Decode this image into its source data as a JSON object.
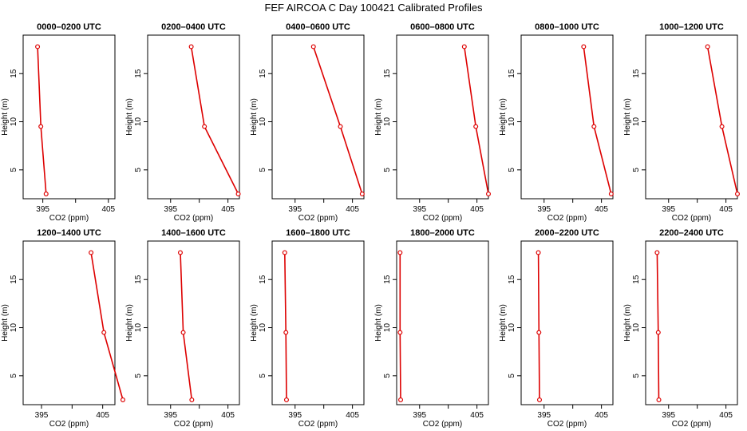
{
  "title": "FEF AIRCOA C  Day 100421  Calibrated Profiles",
  "colors": {
    "line": "#dd0000",
    "axis": "#000000"
  },
  "chart_data": [
    {
      "type": "line",
      "title": "0000–0200 UTC",
      "xlabel": "CO2 (ppm)",
      "ylabel": "Height (m)",
      "xlim": [
        392,
        406
      ],
      "ylim": [
        2,
        19
      ],
      "x_ticks": [
        395,
        405
      ],
      "y_ticks": [
        5,
        10,
        15
      ],
      "series": [
        {
          "x": [
            394.2,
            394.7,
            395.5
          ],
          "y": [
            17.8,
            9.5,
            2.5
          ]
        }
      ]
    },
    {
      "type": "line",
      "title": "0200–0400 UTC",
      "xlabel": "CO2 (ppm)",
      "ylabel": "Height (m)",
      "xlim": [
        391,
        407
      ],
      "ylim": [
        2,
        19
      ],
      "x_ticks": [
        395,
        405
      ],
      "y_ticks": [
        5,
        10,
        15
      ],
      "series": [
        {
          "x": [
            398.6,
            400.9,
            406.8
          ],
          "y": [
            17.8,
            9.5,
            2.5
          ]
        }
      ]
    },
    {
      "type": "line",
      "title": "0400–0600 UTC",
      "xlabel": "CO2 (ppm)",
      "ylabel": "Height (m)",
      "xlim": [
        391,
        407
      ],
      "ylim": [
        2,
        19
      ],
      "x_ticks": [
        395,
        405
      ],
      "y_ticks": [
        5,
        10,
        15
      ],
      "series": [
        {
          "x": [
            398.2,
            402.9,
            406.7
          ],
          "y": [
            17.8,
            9.5,
            2.5
          ]
        }
      ]
    },
    {
      "type": "line",
      "title": "0600–0800 UTC",
      "xlabel": "CO2 (ppm)",
      "ylabel": "Height (m)",
      "xlim": [
        391,
        407
      ],
      "ylim": [
        2,
        19
      ],
      "x_ticks": [
        395,
        405
      ],
      "y_ticks": [
        5,
        10,
        15
      ],
      "series": [
        {
          "x": [
            402.8,
            404.8,
            407.0
          ],
          "y": [
            17.8,
            9.5,
            2.5
          ]
        }
      ]
    },
    {
      "type": "line",
      "title": "0800–1000 UTC",
      "xlabel": "CO2 (ppm)",
      "ylabel": "Height (m)",
      "xlim": [
        391,
        407
      ],
      "ylim": [
        2,
        19
      ],
      "x_ticks": [
        395,
        405
      ],
      "y_ticks": [
        5,
        10,
        15
      ],
      "series": [
        {
          "x": [
            401.9,
            403.7,
            406.7
          ],
          "y": [
            17.8,
            9.5,
            2.5
          ]
        }
      ]
    },
    {
      "type": "line",
      "title": "1000–1200 UTC",
      "xlabel": "CO2 (ppm)",
      "ylabel": "Height (m)",
      "xlim": [
        391,
        407
      ],
      "ylim": [
        2,
        19
      ],
      "x_ticks": [
        395,
        405
      ],
      "y_ticks": [
        5,
        10,
        15
      ],
      "series": [
        {
          "x": [
            401.8,
            404.3,
            407.0
          ],
          "y": [
            17.8,
            9.5,
            2.5
          ]
        }
      ]
    },
    {
      "type": "line",
      "title": "1200–1400 UTC",
      "xlabel": "CO2 (ppm)",
      "ylabel": "Height (m)",
      "xlim": [
        392,
        407
      ],
      "ylim": [
        2,
        19
      ],
      "x_ticks": [
        395,
        405
      ],
      "y_ticks": [
        5,
        10,
        15
      ],
      "series": [
        {
          "x": [
            403.1,
            405.2,
            408.3
          ],
          "y": [
            17.8,
            9.5,
            2.5
          ]
        }
      ]
    },
    {
      "type": "line",
      "title": "1400–1600 UTC",
      "xlabel": "CO2 (ppm)",
      "ylabel": "Height (m)",
      "xlim": [
        391,
        407
      ],
      "ylim": [
        2,
        19
      ],
      "x_ticks": [
        395,
        405
      ],
      "y_ticks": [
        5,
        10,
        15
      ],
      "series": [
        {
          "x": [
            396.7,
            397.2,
            398.7
          ],
          "y": [
            17.8,
            9.5,
            2.5
          ]
        }
      ]
    },
    {
      "type": "line",
      "title": "1600–1800 UTC",
      "xlabel": "CO2 (ppm)",
      "ylabel": "Height (m)",
      "xlim": [
        391,
        407
      ],
      "ylim": [
        2,
        19
      ],
      "x_ticks": [
        395,
        405
      ],
      "y_ticks": [
        5,
        10,
        15
      ],
      "series": [
        {
          "x": [
            393.2,
            393.4,
            393.5
          ],
          "y": [
            17.8,
            9.5,
            2.5
          ]
        }
      ]
    },
    {
      "type": "line",
      "title": "1800–2000 UTC",
      "xlabel": "CO2 (ppm)",
      "ylabel": "Height (m)",
      "xlim": [
        391,
        407
      ],
      "ylim": [
        2,
        19
      ],
      "x_ticks": [
        395,
        405
      ],
      "y_ticks": [
        5,
        10,
        15
      ],
      "series": [
        {
          "x": [
            391.6,
            391.6,
            391.7
          ],
          "y": [
            17.8,
            9.5,
            2.5
          ]
        }
      ]
    },
    {
      "type": "line",
      "title": "2000–2200 UTC",
      "xlabel": "CO2 (ppm)",
      "ylabel": "Height (m)",
      "xlim": [
        391,
        407
      ],
      "ylim": [
        2,
        19
      ],
      "x_ticks": [
        395,
        405
      ],
      "y_ticks": [
        5,
        10,
        15
      ],
      "series": [
        {
          "x": [
            394.0,
            394.1,
            394.2
          ],
          "y": [
            17.8,
            9.5,
            2.5
          ]
        }
      ]
    },
    {
      "type": "line",
      "title": "2200–2400 UTC",
      "xlabel": "CO2 (ppm)",
      "ylabel": "Height (m)",
      "xlim": [
        391,
        407
      ],
      "ylim": [
        2,
        19
      ],
      "x_ticks": [
        395,
        405
      ],
      "y_ticks": [
        5,
        10,
        15
      ],
      "series": [
        {
          "x": [
            393.0,
            393.2,
            393.3
          ],
          "y": [
            17.8,
            9.5,
            2.5
          ]
        }
      ]
    }
  ]
}
